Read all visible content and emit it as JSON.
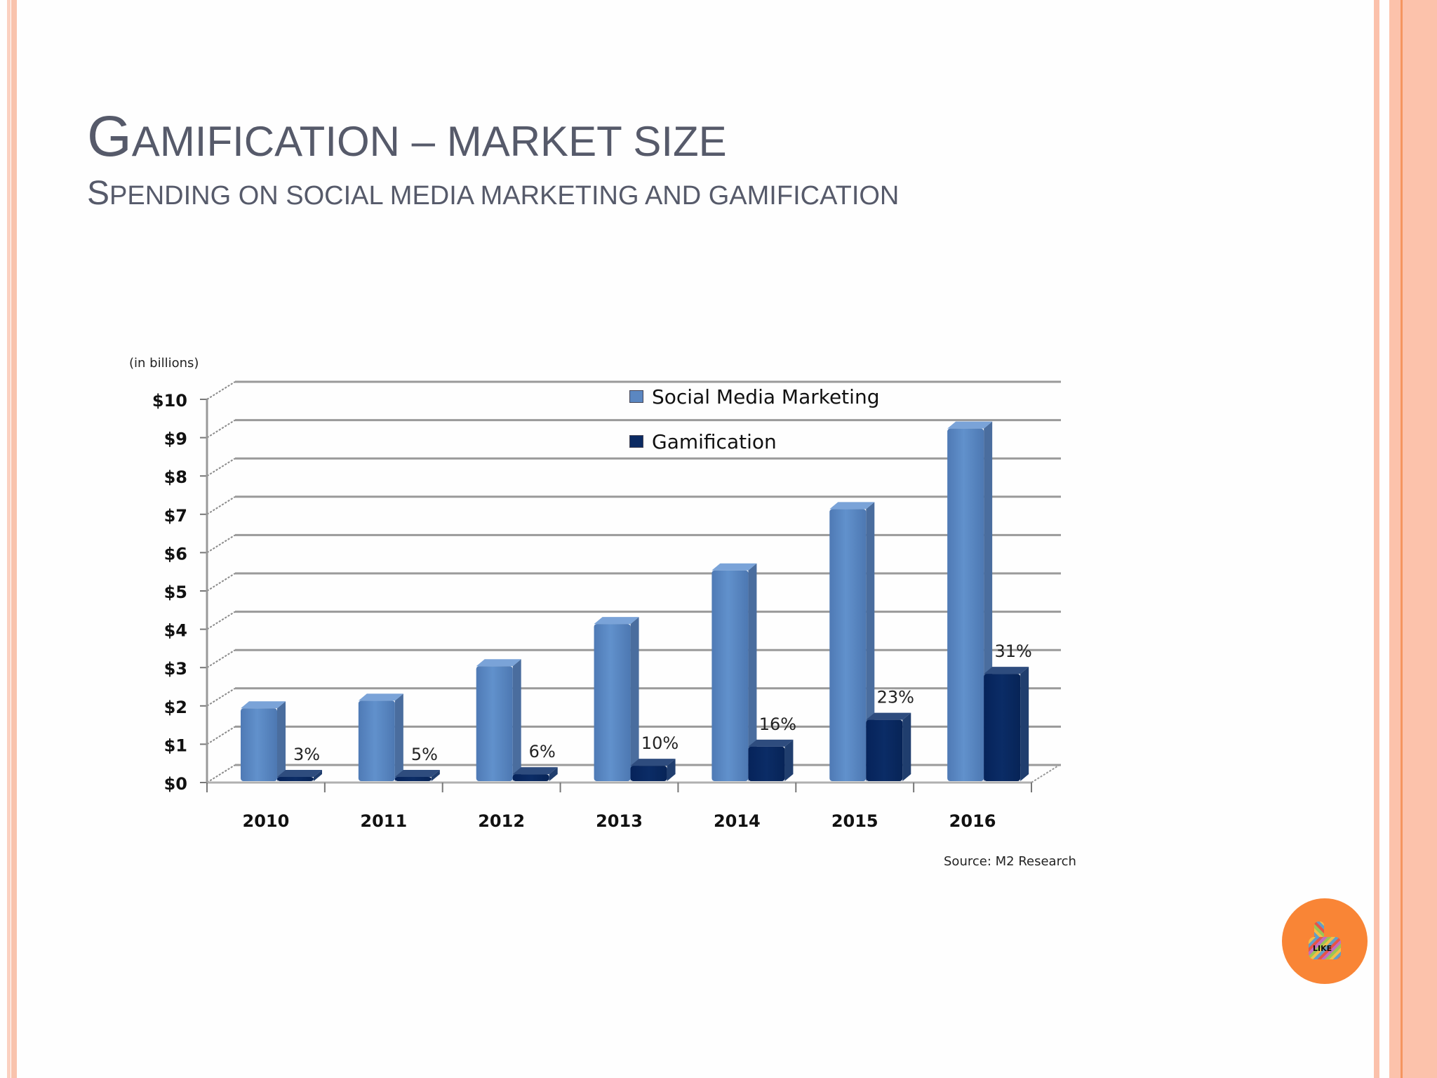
{
  "slide": {
    "title_first": "G",
    "title_rest": "AMIFICATION – MARKET SIZE",
    "subtitle_first": "S",
    "subtitle_rest": "PENDING ON SOCIAL MEDIA MARKETING AND GAMIFICATION",
    "units_label": "(in billions)",
    "source": "Source: M2 Research",
    "badge_text": "LIKE",
    "badge_icon": "thumbs-up-like-icon",
    "colors": {
      "title": "#565a6a",
      "border": "#f9c3ad",
      "badge": "#f98536",
      "smm": "#5b87c1",
      "gamification": "#082a62"
    }
  },
  "legend": [
    {
      "label": "Social Media Marketing",
      "color": "#5b87c1"
    },
    {
      "label": "Gamification",
      "color": "#0b2a62"
    }
  ],
  "chart_data": {
    "type": "bar",
    "title": "Spending on social media marketing and gamification",
    "xlabel": "",
    "ylabel": "(in billions)",
    "ylim": [
      0,
      10
    ],
    "yticks": [
      "$0",
      "$1",
      "$2",
      "$3",
      "$4",
      "$5",
      "$6",
      "$7",
      "$8",
      "$9",
      "$10"
    ],
    "categories": [
      "2010",
      "2011",
      "2012",
      "2013",
      "2014",
      "2015",
      "2016"
    ],
    "series": [
      {
        "name": "Social Media Marketing",
        "values": [
          1.9,
          2.1,
          3.0,
          4.1,
          5.5,
          7.1,
          9.2
        ]
      },
      {
        "name": "Gamification",
        "values": [
          0.06,
          0.1,
          0.18,
          0.4,
          0.9,
          1.6,
          2.8
        ]
      }
    ],
    "annotations": [
      "3%",
      "5%",
      "6%",
      "10%",
      "16%",
      "23%",
      "31%"
    ],
    "grid": true,
    "legend_position": "top-right inside",
    "source": "Source: M2 Research",
    "style": "3d-clustered-column"
  }
}
